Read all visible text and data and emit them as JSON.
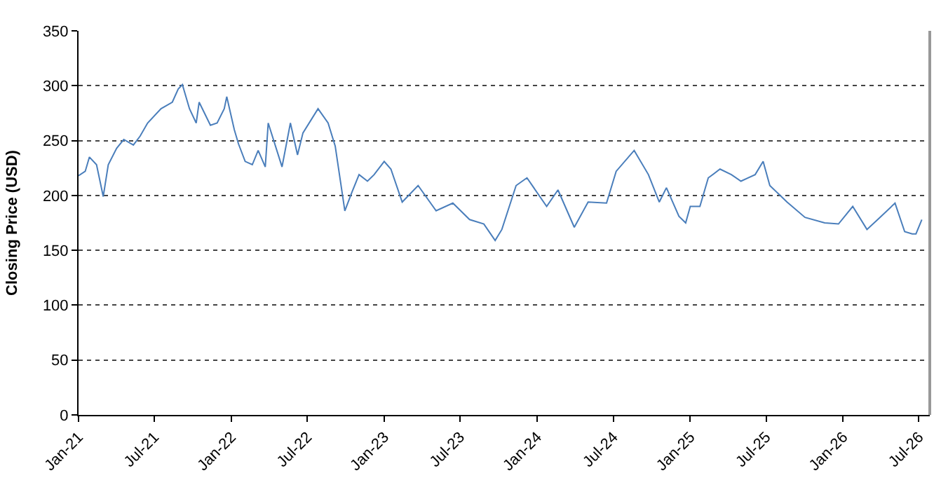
{
  "chart_data": {
    "type": "line",
    "ylabel": "Closing Price (USD)",
    "x": [
      "2021-01-01",
      "2021-01-17",
      "2021-01-27",
      "2021-02-13",
      "2021-03-01",
      "2021-03-13",
      "2021-04-02",
      "2021-04-19",
      "2021-05-12",
      "2021-05-28",
      "2021-06-15",
      "2021-07-17",
      "2021-08-13",
      "2021-08-27",
      "2021-09-06",
      "2021-09-23",
      "2021-10-09",
      "2021-10-16",
      "2021-11-12",
      "2021-11-28",
      "2021-12-15",
      "2021-12-21",
      "2022-01-08",
      "2022-01-18",
      "2022-02-03",
      "2022-02-20",
      "2022-03-06",
      "2022-03-23",
      "2022-03-30",
      "2022-05-02",
      "2022-05-22",
      "2022-06-08",
      "2022-06-21",
      "2022-07-27",
      "2022-08-20",
      "2022-09-06",
      "2022-09-29",
      "2022-10-16",
      "2022-11-02",
      "2022-11-22",
      "2022-12-08",
      "2023-01-01",
      "2023-01-17",
      "2023-02-13",
      "2023-03-23",
      "2023-05-05",
      "2023-06-14",
      "2023-07-24",
      "2023-08-27",
      "2023-09-23",
      "2023-10-09",
      "2023-11-12",
      "2023-12-08",
      "2024-01-24",
      "2024-02-20",
      "2024-03-30",
      "2024-05-02",
      "2024-06-15",
      "2024-07-08",
      "2024-08-20",
      "2024-09-23",
      "2024-10-19",
      "2024-11-05",
      "2024-12-05",
      "2024-12-21",
      "2025-01-01",
      "2025-01-24",
      "2025-02-13",
      "2025-03-13",
      "2025-04-09",
      "2025-05-02",
      "2025-06-05",
      "2025-06-24",
      "2025-07-10",
      "2025-08-20",
      "2025-10-02",
      "2025-11-18",
      "2025-12-21",
      "2026-01-24",
      "2026-02-27",
      "2026-03-30",
      "2026-05-05",
      "2026-05-28",
      "2026-06-15",
      "2026-06-24",
      "2026-07-08"
    ],
    "series": [
      {
        "color": "#4a7ebb",
        "values": [
          218,
          222,
          235,
          228,
          199,
          228,
          243,
          251,
          246,
          254,
          266,
          279,
          285,
          297,
          301,
          279,
          266,
          285,
          264,
          266,
          279,
          290,
          260,
          247,
          231,
          228,
          241,
          226,
          266,
          226,
          266,
          237,
          257,
          279,
          266,
          245,
          186,
          203,
          219,
          213,
          219,
          231,
          224,
          194,
          209,
          186,
          193,
          178,
          174,
          159,
          169,
          209,
          216,
          190,
          205,
          171,
          194,
          193,
          222,
          241,
          219,
          194,
          207,
          181,
          175,
          190,
          190,
          216,
          224,
          219,
          213,
          219,
          231,
          209,
          194,
          180,
          175,
          174,
          190,
          169,
          180,
          193,
          167,
          165,
          165,
          178
        ]
      }
    ],
    "xlim": [
      "2021-01-01",
      "2026-07-27"
    ],
    "xticks": [
      {
        "value": "2021-01-01",
        "label": "Jan-21"
      },
      {
        "value": "2021-07-01",
        "label": "Jul-21"
      },
      {
        "value": "2022-01-01",
        "label": "Jan-22"
      },
      {
        "value": "2022-07-01",
        "label": "Jul-22"
      },
      {
        "value": "2023-01-01",
        "label": "Jan-23"
      },
      {
        "value": "2023-07-01",
        "label": "Jul-23"
      },
      {
        "value": "2024-01-01",
        "label": "Jan-24"
      },
      {
        "value": "2024-07-01",
        "label": "Jul-24"
      },
      {
        "value": "2025-01-01",
        "label": "Jan-25"
      },
      {
        "value": "2025-07-01",
        "label": "Jul-25"
      },
      {
        "value": "2026-01-01",
        "label": "Jan-26"
      },
      {
        "value": "2026-07-01",
        "label": "Jul-26"
      }
    ],
    "ylim": [
      0,
      350
    ],
    "yticks": [
      0,
      50,
      100,
      150,
      200,
      250,
      300,
      350
    ],
    "grid": "y",
    "line_style": "solid",
    "marker": "none"
  }
}
